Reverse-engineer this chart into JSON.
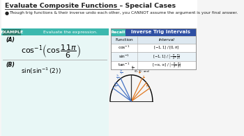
{
  "title": "Evaluate Composite Functions – Special Cases",
  "bullet": "Though trig functions & their inverse undo each other, you CANNOT assume the argument is your final answer.",
  "example_label": "EXAMPLE",
  "example_text": "Evaluate the expression.",
  "part_A_label": "(A)",
  "part_B_label": "(B)",
  "table_title": "Inverse Trig Intervals",
  "table_recall": "Recall",
  "table_header": [
    "Function",
    "Interval"
  ],
  "example_bg": "#3cb8ae",
  "table_header_bg": "#2e4fa3",
  "left_panel_bg": "#e8f7f6",
  "bg_color": "#f5f5f5",
  "title_color": "#222222",
  "bullet_color": "#222222"
}
